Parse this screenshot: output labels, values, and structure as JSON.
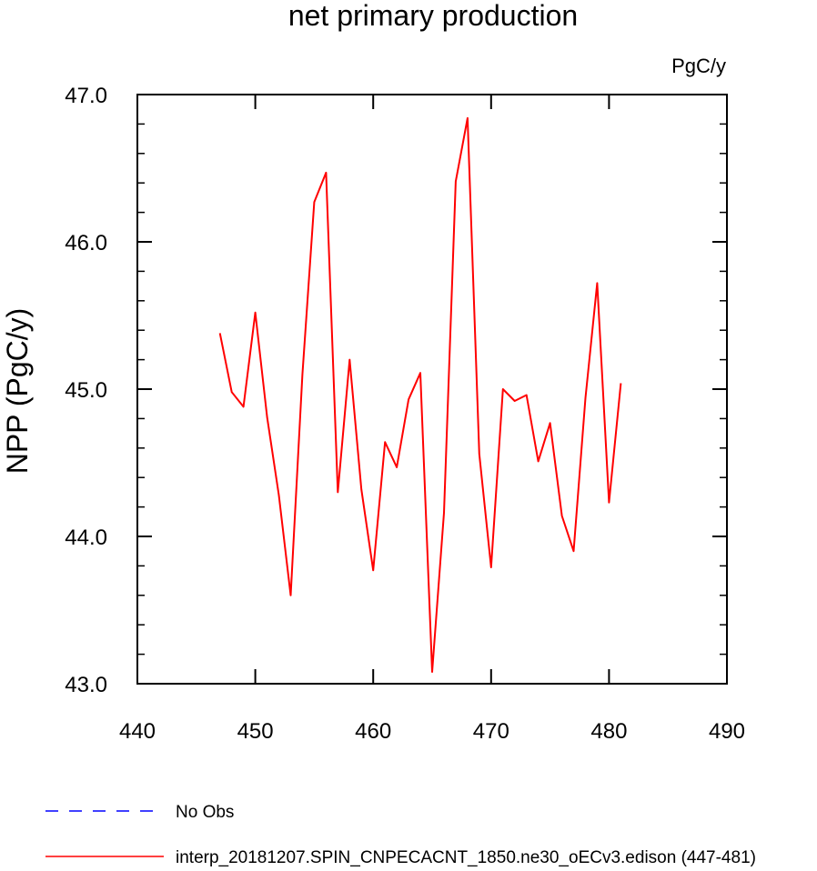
{
  "chart_data": {
    "type": "line",
    "title": "net primary production",
    "units_label": "PgC/y",
    "ylabel": "NPP  (PgC/y)",
    "xlabel": "",
    "xlim": [
      440,
      490
    ],
    "ylim": [
      43.0,
      47.0
    ],
    "x_ticks": [
      440,
      450,
      460,
      470,
      480,
      490
    ],
    "x_tick_labels": [
      "440",
      "450",
      "460",
      "470",
      "480",
      "490"
    ],
    "y_ticks": [
      43.0,
      44.0,
      45.0,
      46.0,
      47.0
    ],
    "y_tick_labels": [
      "43.0",
      "44.0",
      "45.0",
      "46.0",
      "47.0"
    ],
    "grid": false,
    "series": [
      {
        "name": "interp_20181207.SPIN_CNPECACNT_1850.ne30_oECv3.edison (447-481)",
        "color": "#ff0000",
        "style": "solid",
        "x": [
          447,
          448,
          449,
          450,
          451,
          452,
          453,
          454,
          455,
          456,
          457,
          458,
          459,
          460,
          461,
          462,
          463,
          464,
          465,
          466,
          467,
          468,
          469,
          470,
          471,
          472,
          473,
          474,
          475,
          476,
          477,
          478,
          479,
          480,
          481
        ],
        "y": [
          45.38,
          44.98,
          44.88,
          45.52,
          44.81,
          44.28,
          43.6,
          45.1,
          46.27,
          46.47,
          44.3,
          45.2,
          44.32,
          43.77,
          44.64,
          44.47,
          44.93,
          45.11,
          43.08,
          44.16,
          46.41,
          46.84,
          44.56,
          43.79,
          45.0,
          44.92,
          44.96,
          44.51,
          44.77,
          44.14,
          43.9,
          44.94,
          45.72,
          44.23,
          45.04
        ]
      }
    ],
    "legend": {
      "placement": "bottom-left",
      "entries": [
        {
          "label": "No Obs",
          "color": "#0000ff",
          "style": "dashed"
        },
        {
          "label": "interp_20181207.SPIN_CNPECACNT_1850.ne30_oECv3.edison (447-481)",
          "color": "#ff0000",
          "style": "solid"
        }
      ]
    }
  }
}
